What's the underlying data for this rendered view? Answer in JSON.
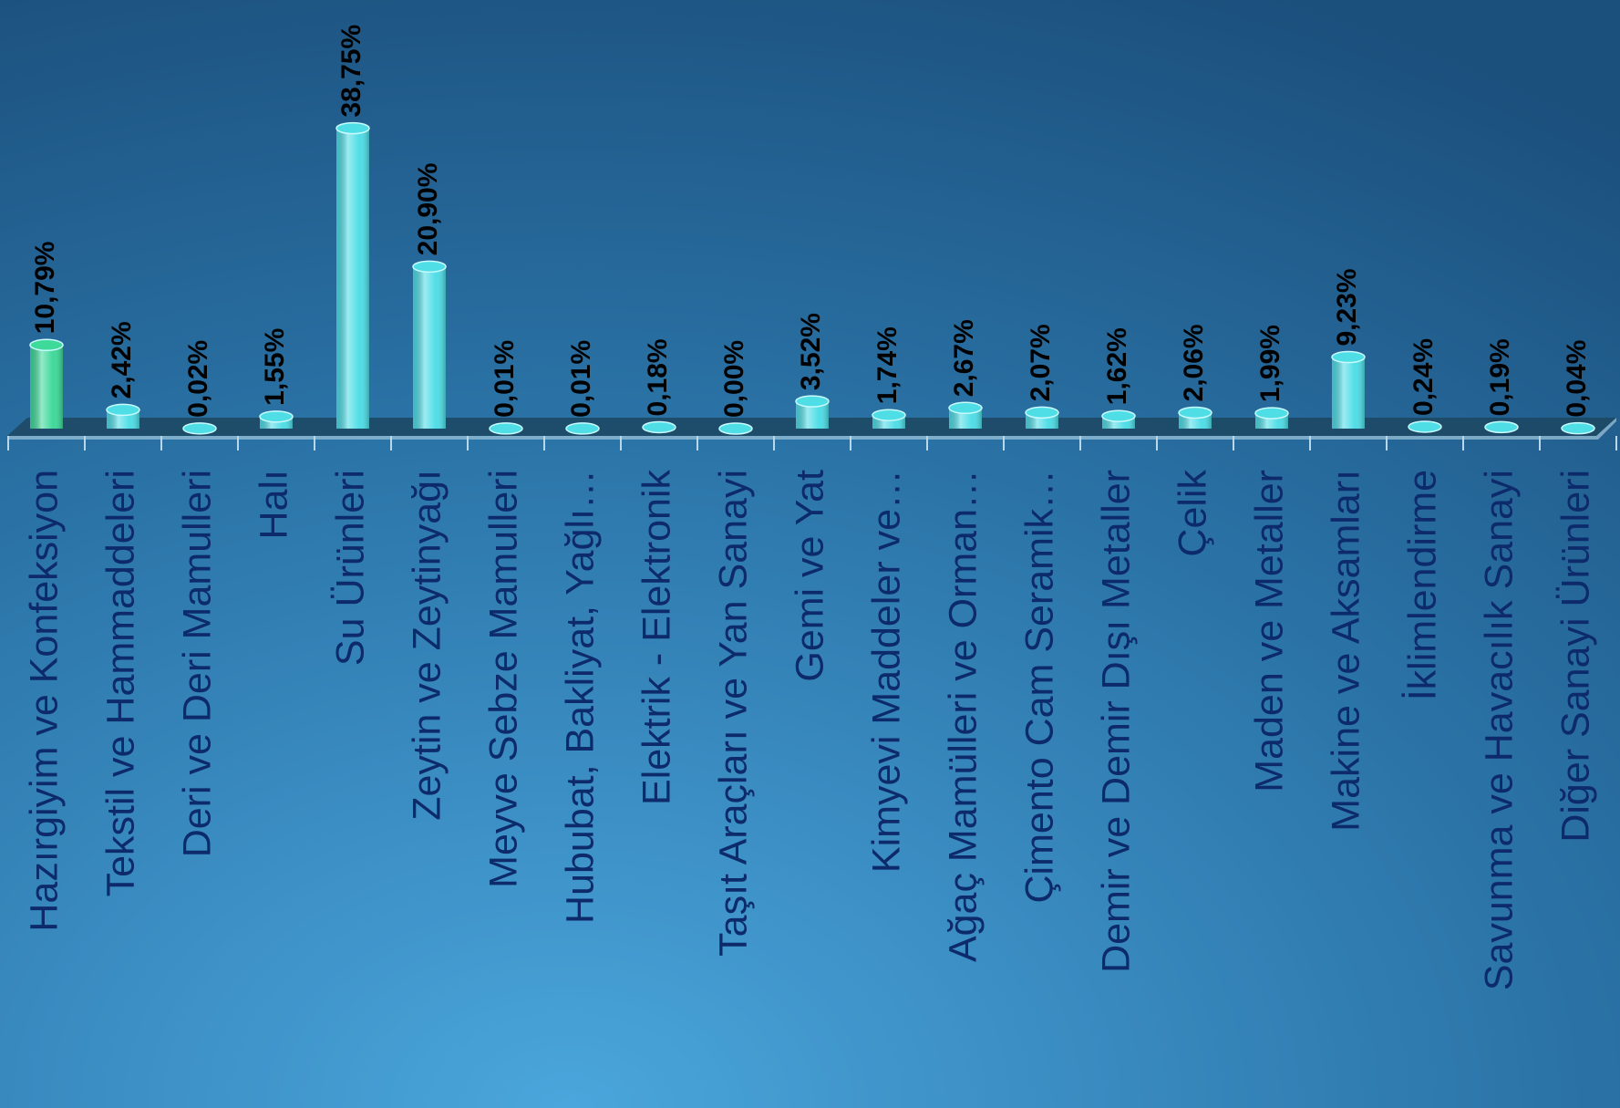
{
  "chart_data": {
    "type": "bar",
    "categories": [
      "Hazırgiyim ve Konfeksiyon",
      "Tekstil ve Hammaddeleri",
      "Deri ve Deri Mamulleri",
      "Halı",
      "Su Ürünleri",
      "Zeytin ve Zeytinyağı",
      "Meyve Sebze Mamulleri",
      "Hububat, Bakliyat, Yağlı…",
      "Elektrik - Elektronik",
      "Taşıt Araçları ve Yan Sanayi",
      "Gemi ve Yat",
      "Kimyevi Maddeler ve…",
      "Ağaç Mamülleri ve Orman…",
      "Çimento Cam Seramik…",
      "Demir ve Demir Dışı Metaller",
      "Çelik",
      "Maden ve Metaller",
      "Makine ve Aksamları",
      "İklimlendirme",
      "Savunma ve Havacılık Sanayi",
      "Diğer Sanayi Ürünleri"
    ],
    "values": [
      10.79,
      2.42,
      0.02,
      1.55,
      38.75,
      20.9,
      0.01,
      0.01,
      0.18,
      0.0,
      3.52,
      1.74,
      2.67,
      2.07,
      1.62,
      2.06,
      1.99,
      9.23,
      0.24,
      0.19,
      0.04
    ],
    "value_labels": [
      "10,79%",
      "2,42%",
      "0,02%",
      "1,55%",
      "38,75%",
      "20,90%",
      "0,01%",
      "0,01%",
      "0,18%",
      "0,00%",
      "3,52%",
      "1,74%",
      "2,67%",
      "2,07%",
      "1,62%",
      "2,06%",
      "1,99%",
      "9,23%",
      "0,24%",
      "0,19%",
      "0,04%"
    ],
    "colors": [
      "#3fd99a",
      "#4fdde6",
      "#4fdde6",
      "#4fdde6",
      "#4fdde6",
      "#4fdde6",
      "#4fdde6",
      "#4fdde6",
      "#4fdde6",
      "#4fdde6",
      "#4fdde6",
      "#4fdde6",
      "#4fdde6",
      "#4fdde6",
      "#4fdde6",
      "#4fdde6",
      "#4fdde6",
      "#4fdde6",
      "#4fdde6",
      "#4fdde6",
      "#4fdde6"
    ],
    "ylim": [
      0,
      40
    ]
  }
}
